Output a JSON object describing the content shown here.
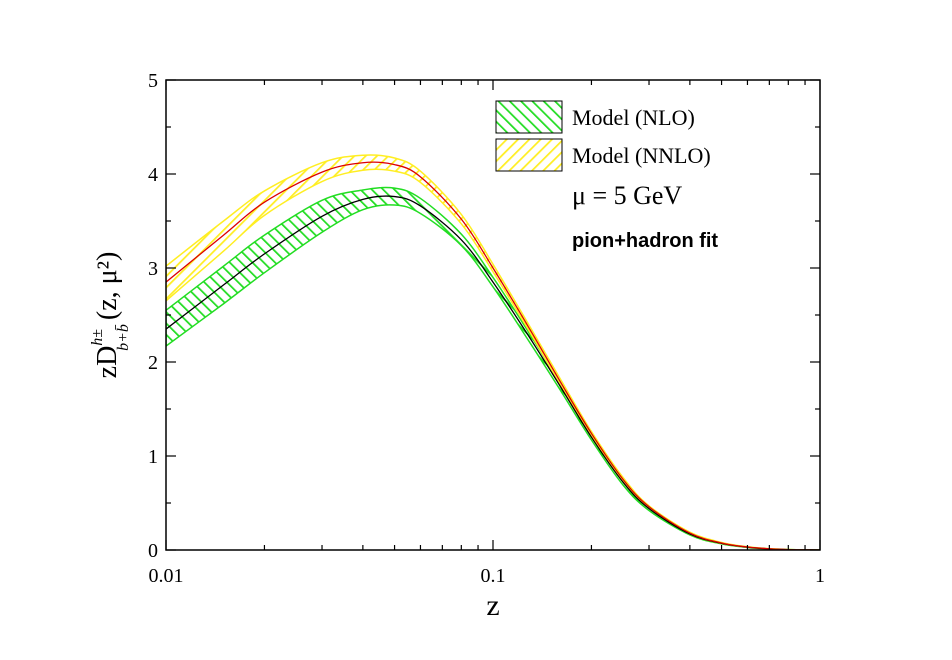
{
  "chart_data": {
    "type": "line",
    "xscale": "log",
    "xlim": [
      0.01,
      1
    ],
    "ylim": [
      0,
      5
    ],
    "xlabel": "z",
    "ylabel": {
      "prefix": "zD",
      "superscript": "h±",
      "subscript": "b+b̄",
      "suffix": "(z, μ²)"
    },
    "x_ticks": [
      {
        "value": 0.01,
        "label": "0.01"
      },
      {
        "value": 0.1,
        "label": "0.1"
      },
      {
        "value": 1,
        "label": "1"
      }
    ],
    "y_ticks": [
      {
        "value": 0,
        "label": "0"
      },
      {
        "value": 1,
        "label": "1"
      },
      {
        "value": 2,
        "label": "2"
      },
      {
        "value": 3,
        "label": "3"
      },
      {
        "value": 4,
        "label": "4"
      },
      {
        "value": 5,
        "label": "5"
      }
    ],
    "annotations": [
      "μ = 5 GeV",
      "pion+hadron fit"
    ],
    "legend_position": "top-right",
    "series": [
      {
        "name": "Model (NLO)",
        "band_color": "#22dd22",
        "line_color": "#000000",
        "x": [
          0.01,
          0.015,
          0.02,
          0.03,
          0.04,
          0.05,
          0.06,
          0.08,
          0.1,
          0.13,
          0.16,
          0.2,
          0.25,
          0.3,
          0.4,
          0.5,
          0.6,
          0.7,
          0.8,
          0.9,
          1.0
        ],
        "central": [
          2.35,
          2.82,
          3.15,
          3.55,
          3.73,
          3.76,
          3.66,
          3.3,
          2.85,
          2.25,
          1.75,
          1.2,
          0.72,
          0.44,
          0.17,
          0.07,
          0.03,
          0.012,
          0.004,
          0.001,
          0.0
        ],
        "upper": [
          2.55,
          3.02,
          3.35,
          3.72,
          3.83,
          3.85,
          3.74,
          3.36,
          2.9,
          2.29,
          1.78,
          1.23,
          0.74,
          0.46,
          0.18,
          0.075,
          0.032,
          0.013,
          0.005,
          0.001,
          0.0
        ],
        "lower": [
          2.17,
          2.62,
          2.95,
          3.38,
          3.62,
          3.67,
          3.58,
          3.24,
          2.8,
          2.2,
          1.71,
          1.17,
          0.69,
          0.42,
          0.16,
          0.065,
          0.027,
          0.01,
          0.003,
          0.001,
          0.0
        ]
      },
      {
        "name": "Model (NNLO)",
        "band_color": "#ffee22",
        "line_color": "#dd0000",
        "x": [
          0.01,
          0.015,
          0.02,
          0.03,
          0.04,
          0.05,
          0.06,
          0.08,
          0.1,
          0.13,
          0.16,
          0.2,
          0.25,
          0.3,
          0.4,
          0.5,
          0.6,
          0.7,
          0.8,
          0.9,
          1.0
        ],
        "central": [
          2.85,
          3.35,
          3.7,
          4.02,
          4.12,
          4.1,
          3.97,
          3.52,
          3.0,
          2.34,
          1.8,
          1.24,
          0.75,
          0.46,
          0.18,
          0.075,
          0.032,
          0.013,
          0.004,
          0.001,
          0.0
        ],
        "upper": [
          3.02,
          3.5,
          3.82,
          4.12,
          4.2,
          4.17,
          4.03,
          3.57,
          3.04,
          2.37,
          1.83,
          1.26,
          0.77,
          0.47,
          0.19,
          0.08,
          0.034,
          0.014,
          0.005,
          0.001,
          0.0
        ],
        "lower": [
          2.65,
          3.18,
          3.56,
          3.92,
          4.04,
          4.03,
          3.91,
          3.47,
          2.96,
          2.31,
          1.77,
          1.22,
          0.73,
          0.45,
          0.17,
          0.07,
          0.03,
          0.012,
          0.004,
          0.001,
          0.0
        ]
      }
    ]
  }
}
